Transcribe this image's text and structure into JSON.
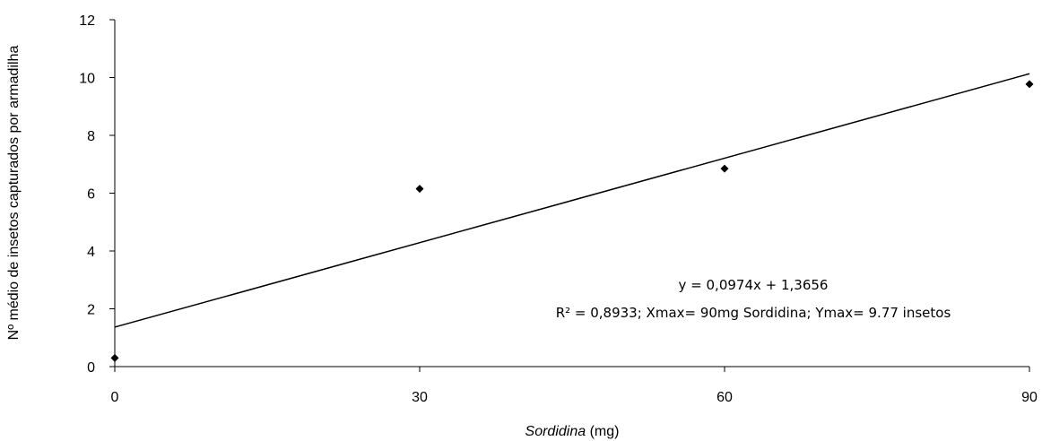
{
  "chart_data": {
    "type": "scatter",
    "x": [
      0,
      30,
      60,
      90
    ],
    "y": [
      0.3,
      6.15,
      6.85,
      9.77
    ],
    "xlim": [
      0,
      90
    ],
    "ylim": [
      0,
      12
    ],
    "xticks": [
      0,
      30,
      60,
      90
    ],
    "yticks": [
      0,
      2,
      4,
      6,
      8,
      10,
      12
    ],
    "xlabel_italic": "Sordidina",
    "xlabel_rest": " (mg)",
    "ylabel": "Nº médio de insetos capturados por armadilha",
    "trendline": {
      "slope": 0.0974,
      "intercept": 1.3656
    },
    "annotation_line1": "y = 0,0974x + 1,3656",
    "annotation_line2": "R² = 0,8933; Xmax= 90mg Sordidina; Ymax= 9.77 insetos",
    "grid": false,
    "legend": "none"
  }
}
